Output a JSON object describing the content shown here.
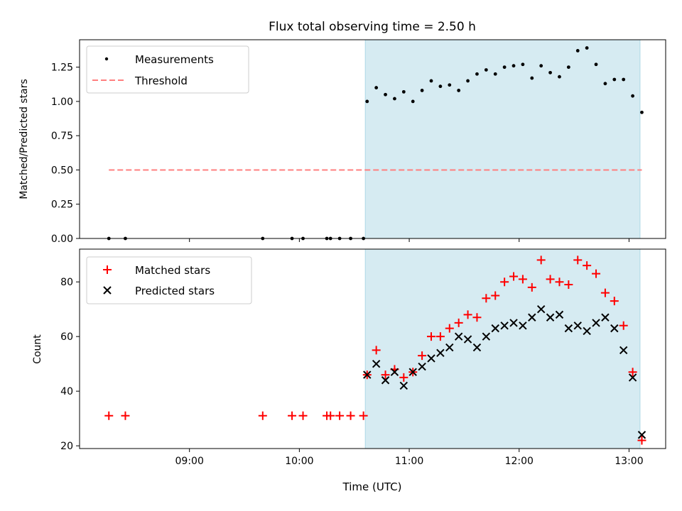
{
  "chart_data": [
    {
      "type": "scatter",
      "title": "Flux total observing time = 2.50 h",
      "xlabel": "",
      "ylabel": "Matched/Predicted stars",
      "x_axis": "time",
      "xlim": [
        "08:00",
        "13:20"
      ],
      "ylim": [
        0,
        1.45
      ],
      "yticks": [
        0.0,
        0.25,
        0.5,
        0.75,
        1.0,
        1.25
      ],
      "ytick_labels": [
        "0.00",
        "0.25",
        "0.50",
        "0.75",
        "1.00",
        "1.25"
      ],
      "shaded_interval": [
        "10:36",
        "13:06"
      ],
      "shade_color": "#add8e6",
      "legend": "top-left",
      "series": [
        {
          "name": "Measurements",
          "marker": "dot",
          "color": "#000000",
          "x": [
            "08:16",
            "08:25",
            "09:40",
            "09:56",
            "10:02",
            "10:15",
            "10:17",
            "10:22",
            "10:28",
            "10:35",
            "10:37",
            "10:42",
            "10:47",
            "10:52",
            "10:57",
            "11:02",
            "11:07",
            "11:12",
            "11:17",
            "11:22",
            "11:27",
            "11:32",
            "11:37",
            "11:42",
            "11:47",
            "11:52",
            "11:57",
            "12:02",
            "12:07",
            "12:12",
            "12:17",
            "12:22",
            "12:27",
            "12:32",
            "12:37",
            "12:42",
            "12:47",
            "12:52",
            "12:57",
            "13:02",
            "13:07"
          ],
          "y": [
            0,
            0,
            0,
            0,
            0,
            0,
            0,
            0,
            0,
            0,
            1.0,
            1.1,
            1.05,
            1.02,
            1.07,
            1.0,
            1.08,
            1.15,
            1.11,
            1.12,
            1.08,
            1.15,
            1.2,
            1.23,
            1.2,
            1.25,
            1.26,
            1.27,
            1.17,
            1.26,
            1.21,
            1.18,
            1.25,
            1.37,
            1.39,
            1.27,
            1.13,
            1.16,
            1.16,
            1.04,
            0.92
          ]
        },
        {
          "name": "Threshold",
          "marker": "dashed-line",
          "color": "#ff7f7f",
          "x": [
            "08:16",
            "13:07"
          ],
          "y": [
            0.5,
            0.5
          ]
        }
      ]
    },
    {
      "type": "scatter",
      "title": "",
      "xlabel": "Time (UTC)",
      "ylabel": "Count",
      "x_axis": "time",
      "xlim": [
        "08:00",
        "13:20"
      ],
      "ylim": [
        19,
        92
      ],
      "xticks": [
        "09:00",
        "10:00",
        "11:00",
        "12:00",
        "13:00"
      ],
      "yticks": [
        20,
        40,
        60,
        80
      ],
      "shaded_interval": [
        "10:36",
        "13:06"
      ],
      "shade_color": "#add8e6",
      "legend": "top-left",
      "series": [
        {
          "name": "Matched stars",
          "marker": "plus",
          "color": "#ff0000",
          "x": [
            "08:16",
            "08:25",
            "09:40",
            "09:56",
            "10:02",
            "10:15",
            "10:17",
            "10:22",
            "10:28",
            "10:35",
            "10:37",
            "10:42",
            "10:47",
            "10:52",
            "10:57",
            "11:02",
            "11:07",
            "11:12",
            "11:17",
            "11:22",
            "11:27",
            "11:32",
            "11:37",
            "11:42",
            "11:47",
            "11:52",
            "11:57",
            "12:02",
            "12:07",
            "12:12",
            "12:17",
            "12:22",
            "12:27",
            "12:32",
            "12:37",
            "12:42",
            "12:47",
            "12:52",
            "12:57",
            "13:02",
            "13:07"
          ],
          "y": [
            31,
            31,
            31,
            31,
            31,
            31,
            31,
            31,
            31,
            31,
            46,
            55,
            46,
            48,
            45,
            47,
            53,
            60,
            60,
            63,
            65,
            68,
            67,
            74,
            75,
            80,
            82,
            81,
            78,
            88,
            81,
            80,
            79,
            88,
            86,
            83,
            76,
            73,
            64,
            47,
            22
          ]
        },
        {
          "name": "Predicted stars",
          "marker": "x",
          "color": "#000000",
          "x": [
            "10:37",
            "10:42",
            "10:47",
            "10:52",
            "10:57",
            "11:02",
            "11:07",
            "11:12",
            "11:17",
            "11:22",
            "11:27",
            "11:32",
            "11:37",
            "11:42",
            "11:47",
            "11:52",
            "11:57",
            "12:02",
            "12:07",
            "12:12",
            "12:17",
            "12:22",
            "12:27",
            "12:32",
            "12:37",
            "12:42",
            "12:47",
            "12:52",
            "12:57",
            "13:02",
            "13:07"
          ],
          "y": [
            46,
            50,
            44,
            47,
            42,
            47,
            49,
            52,
            54,
            56,
            60,
            59,
            56,
            60,
            63,
            64,
            65,
            64,
            67,
            70,
            67,
            68,
            63,
            64,
            62,
            65,
            67,
            63,
            55,
            45,
            24
          ]
        }
      ]
    }
  ]
}
